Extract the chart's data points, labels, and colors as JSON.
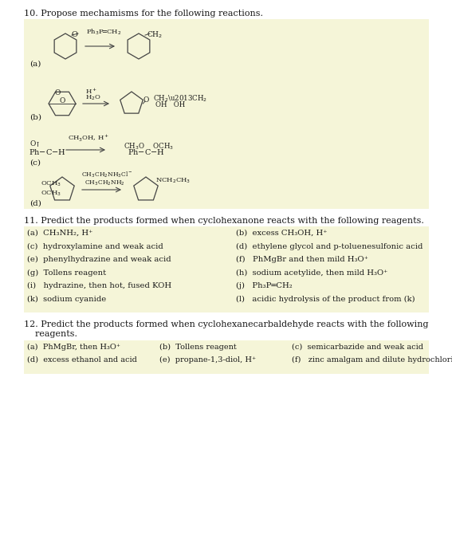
{
  "background_color": "#fafae8",
  "page_background": "#ffffff",
  "figsize": [
    5.67,
    7.0
  ],
  "dpi": 100,
  "title10": "10. Propose mechamisms for the following reactions.",
  "title11": "11. Predict the products formed when cyclohexanone reacts with the following reagents.",
  "title12_line1": "12. Predict the products formed when cyclohexanecarbaldehyde reacts with the following",
  "title12_line2": "    reagents.",
  "section11_col1": [
    "(a)  CH₃NH₂, H⁺",
    "(c)  hydroxylamine and weak acid",
    "(e)  phenylhydrazine and weak acid",
    "(g)  Tollens reagent",
    "(i)   hydrazine, then hot, fused KOH",
    "(k)  sodium cyanide"
  ],
  "section11_col2": [
    "(b)  excess CH₃OH, H⁺",
    "(d)  ethylene glycol and p-toluenesulfonic acid",
    "(f)   PhMgBr and then mild H₃O⁺",
    "(h)  sodium acetylide, then mild H₃O⁺",
    "(j)   Ph₃P═CH₂",
    "(l)   acidic hydrolysis of the product from (k)"
  ],
  "section12_col1": [
    "(a)  PhMgBr, then H₃O⁺",
    "(d)  excess ethanol and acid"
  ],
  "section12_col2": [
    "(b)  Tollens reagent",
    "(e)  propane-1,3-diol, H⁺"
  ],
  "section12_col3": [
    "(c)  semicarbazide and weak acid",
    "(f)   zinc amalgam and dilute hydrochloric acid"
  ],
  "highlight_color": "#f5f5d8",
  "text_color": "#1a1a1a"
}
